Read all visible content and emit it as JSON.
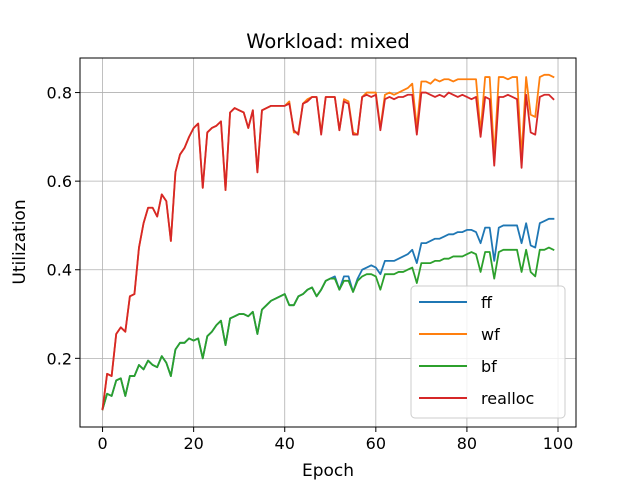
{
  "chart_data": {
    "type": "line",
    "title": "Workload: mixed",
    "xlabel": "Epoch",
    "ylabel": "Utilization",
    "xlim": [
      -4.95,
      103.95
    ],
    "ylim": [
      0.045,
      0.878
    ],
    "xticks": [
      0,
      20,
      40,
      60,
      80,
      100
    ],
    "yticks": [
      0.2,
      0.4,
      0.6,
      0.8
    ],
    "xtick_labels": [
      "0",
      "20",
      "40",
      "60",
      "80",
      "100"
    ],
    "ytick_labels": [
      "0.2",
      "0.4",
      "0.6",
      "0.8"
    ],
    "grid": true,
    "legend_position": "lower right",
    "x": [
      0,
      1,
      2,
      3,
      4,
      5,
      6,
      7,
      8,
      9,
      10,
      11,
      12,
      13,
      14,
      15,
      16,
      17,
      18,
      19,
      20,
      21,
      22,
      23,
      24,
      25,
      26,
      27,
      28,
      29,
      30,
      31,
      32,
      33,
      34,
      35,
      36,
      37,
      38,
      39,
      40,
      41,
      42,
      43,
      44,
      45,
      46,
      47,
      48,
      49,
      50,
      51,
      52,
      53,
      54,
      55,
      56,
      57,
      58,
      59,
      60,
      61,
      62,
      63,
      64,
      65,
      66,
      67,
      68,
      69,
      70,
      71,
      72,
      73,
      74,
      75,
      76,
      77,
      78,
      79,
      80,
      81,
      82,
      83,
      84,
      85,
      86,
      87,
      88,
      89,
      90,
      91,
      92,
      93,
      94,
      95,
      96,
      97,
      98,
      99
    ],
    "series": [
      {
        "name": "ff",
        "color": "#1f77b4",
        "values": [
          0.085,
          0.12,
          0.115,
          0.15,
          0.155,
          0.115,
          0.16,
          0.16,
          0.185,
          0.175,
          0.195,
          0.185,
          0.18,
          0.205,
          0.19,
          0.16,
          0.22,
          0.235,
          0.235,
          0.245,
          0.24,
          0.245,
          0.2,
          0.25,
          0.26,
          0.275,
          0.285,
          0.23,
          0.29,
          0.295,
          0.3,
          0.3,
          0.295,
          0.305,
          0.255,
          0.31,
          0.32,
          0.33,
          0.335,
          0.34,
          0.345,
          0.32,
          0.32,
          0.34,
          0.345,
          0.355,
          0.36,
          0.34,
          0.355,
          0.375,
          0.38,
          0.385,
          0.355,
          0.385,
          0.385,
          0.35,
          0.38,
          0.4,
          0.405,
          0.41,
          0.405,
          0.39,
          0.42,
          0.42,
          0.42,
          0.425,
          0.43,
          0.435,
          0.445,
          0.415,
          0.46,
          0.46,
          0.465,
          0.47,
          0.47,
          0.475,
          0.48,
          0.48,
          0.485,
          0.485,
          0.49,
          0.49,
          0.485,
          0.46,
          0.495,
          0.495,
          0.42,
          0.495,
          0.5,
          0.5,
          0.5,
          0.5,
          0.46,
          0.505,
          0.455,
          0.45,
          0.505,
          0.51,
          0.515,
          0.515
        ]
      },
      {
        "name": "wf",
        "color": "#ff7f0e",
        "values": [
          0.085,
          0.165,
          0.16,
          0.255,
          0.27,
          0.26,
          0.34,
          0.345,
          0.45,
          0.505,
          0.54,
          0.54,
          0.52,
          0.57,
          0.555,
          0.465,
          0.62,
          0.66,
          0.675,
          0.7,
          0.72,
          0.73,
          0.585,
          0.71,
          0.72,
          0.725,
          0.735,
          0.58,
          0.755,
          0.765,
          0.76,
          0.755,
          0.72,
          0.76,
          0.62,
          0.76,
          0.765,
          0.77,
          0.77,
          0.77,
          0.77,
          0.78,
          0.71,
          0.71,
          0.775,
          0.785,
          0.79,
          0.79,
          0.71,
          0.79,
          0.79,
          0.79,
          0.715,
          0.785,
          0.78,
          0.71,
          0.705,
          0.79,
          0.8,
          0.8,
          0.8,
          0.72,
          0.795,
          0.8,
          0.795,
          0.8,
          0.805,
          0.81,
          0.82,
          0.72,
          0.825,
          0.825,
          0.82,
          0.83,
          0.825,
          0.83,
          0.83,
          0.825,
          0.83,
          0.83,
          0.83,
          0.83,
          0.83,
          0.71,
          0.835,
          0.835,
          0.655,
          0.835,
          0.835,
          0.83,
          0.835,
          0.835,
          0.655,
          0.835,
          0.75,
          0.745,
          0.835,
          0.84,
          0.84,
          0.835
        ]
      },
      {
        "name": "bf",
        "color": "#2ca02c",
        "values": [
          0.085,
          0.12,
          0.115,
          0.15,
          0.155,
          0.115,
          0.16,
          0.16,
          0.185,
          0.175,
          0.195,
          0.185,
          0.18,
          0.205,
          0.19,
          0.16,
          0.22,
          0.235,
          0.235,
          0.245,
          0.24,
          0.245,
          0.2,
          0.25,
          0.26,
          0.275,
          0.285,
          0.23,
          0.29,
          0.295,
          0.3,
          0.3,
          0.295,
          0.305,
          0.255,
          0.31,
          0.32,
          0.33,
          0.335,
          0.34,
          0.345,
          0.32,
          0.32,
          0.34,
          0.345,
          0.355,
          0.36,
          0.34,
          0.355,
          0.375,
          0.38,
          0.38,
          0.355,
          0.375,
          0.375,
          0.35,
          0.375,
          0.385,
          0.39,
          0.39,
          0.385,
          0.355,
          0.39,
          0.39,
          0.39,
          0.395,
          0.395,
          0.4,
          0.405,
          0.37,
          0.415,
          0.415,
          0.415,
          0.42,
          0.42,
          0.425,
          0.425,
          0.43,
          0.43,
          0.43,
          0.435,
          0.44,
          0.435,
          0.395,
          0.44,
          0.44,
          0.38,
          0.44,
          0.445,
          0.445,
          0.445,
          0.445,
          0.395,
          0.445,
          0.395,
          0.385,
          0.445,
          0.445,
          0.45,
          0.445
        ]
      },
      {
        "name": "realloc",
        "color": "#d62728",
        "values": [
          0.085,
          0.165,
          0.16,
          0.255,
          0.27,
          0.26,
          0.34,
          0.345,
          0.45,
          0.505,
          0.54,
          0.54,
          0.52,
          0.57,
          0.555,
          0.465,
          0.62,
          0.66,
          0.675,
          0.7,
          0.72,
          0.73,
          0.585,
          0.71,
          0.72,
          0.725,
          0.735,
          0.58,
          0.755,
          0.765,
          0.76,
          0.755,
          0.72,
          0.76,
          0.62,
          0.76,
          0.765,
          0.77,
          0.77,
          0.77,
          0.77,
          0.775,
          0.715,
          0.705,
          0.775,
          0.78,
          0.79,
          0.79,
          0.705,
          0.79,
          0.79,
          0.79,
          0.715,
          0.78,
          0.775,
          0.705,
          0.705,
          0.79,
          0.795,
          0.79,
          0.795,
          0.715,
          0.785,
          0.79,
          0.785,
          0.79,
          0.79,
          0.795,
          0.795,
          0.705,
          0.8,
          0.8,
          0.795,
          0.79,
          0.795,
          0.79,
          0.8,
          0.795,
          0.79,
          0.795,
          0.79,
          0.785,
          0.79,
          0.7,
          0.79,
          0.785,
          0.635,
          0.79,
          0.79,
          0.795,
          0.79,
          0.785,
          0.63,
          0.795,
          0.71,
          0.705,
          0.79,
          0.795,
          0.795,
          0.785
        ]
      }
    ]
  }
}
